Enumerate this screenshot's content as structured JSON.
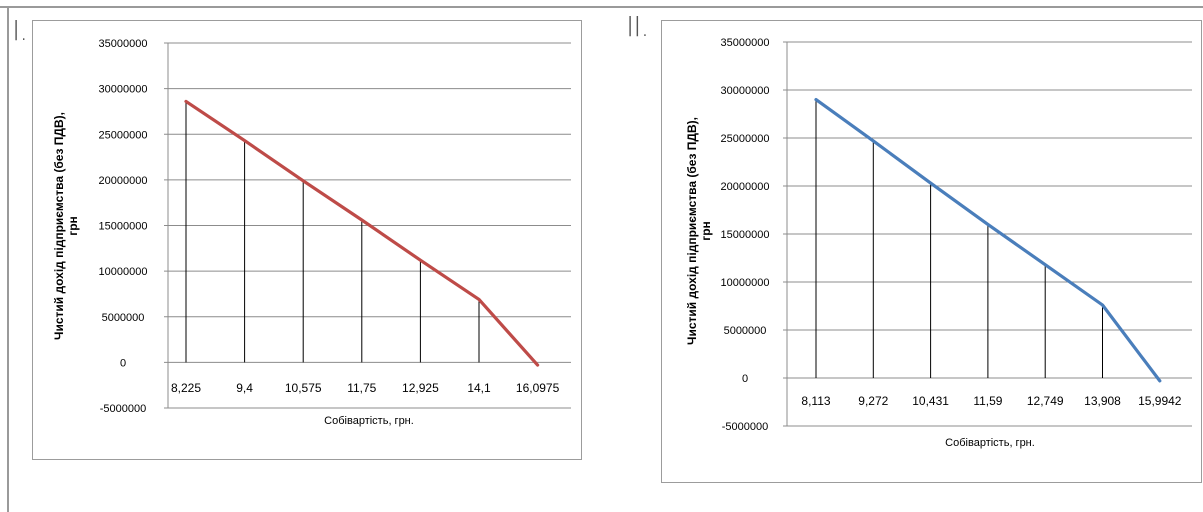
{
  "panel_labels": [
    "I.",
    "II."
  ],
  "chart_data": [
    {
      "type": "line",
      "categories": [
        "8,225",
        "9,4",
        "10,575",
        "11,75",
        "12,925",
        "14,1",
        "16,0975"
      ],
      "series": [
        {
          "values": [
            28600000,
            24300000,
            19900000,
            15600000,
            11200000,
            6900000,
            -300000
          ]
        }
      ],
      "xlabel": "Собівартість, грн.",
      "ylabel": "Чистий дохід підприємства (без ПДВ), грн",
      "ylim": [
        -5000000,
        35000000
      ],
      "yticks": [
        "35000000",
        "30000000",
        "25000000",
        "20000000",
        "15000000",
        "10000000",
        "5000000",
        "0",
        "-5000000"
      ],
      "drop_lines": true,
      "grid": true,
      "color": "#be4b48"
    },
    {
      "type": "line",
      "categories": [
        "8,113",
        "9,272",
        "10,431",
        "11,59",
        "12,749",
        "13,908",
        "15,9942"
      ],
      "series": [
        {
          "values": [
            29000000,
            24700000,
            20300000,
            16000000,
            11800000,
            7600000,
            -300000
          ]
        }
      ],
      "xlabel": "Собівартість, грн.",
      "ylabel": "Чистий дохід підприємства (без ПДВ), грн",
      "ylim": [
        -5000000,
        35000000
      ],
      "yticks": [
        "35000000",
        "30000000",
        "25000000",
        "20000000",
        "15000000",
        "10000000",
        "5000000",
        "0",
        "-5000000"
      ],
      "drop_lines": true,
      "grid": true,
      "color": "#4a7ebb"
    }
  ]
}
